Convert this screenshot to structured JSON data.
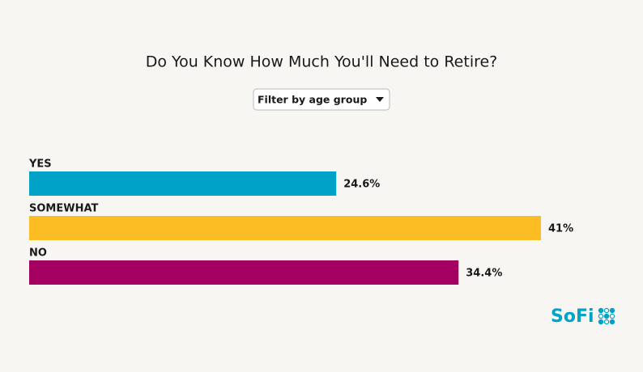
{
  "chart_data": {
    "type": "bar",
    "orientation": "horizontal",
    "title": "Do You Know How Much You'll Need to Retire?",
    "categories": [
      "YES",
      "SOMEWHAT",
      "NO"
    ],
    "values": [
      24.6,
      41,
      34.4
    ],
    "value_labels": [
      "24.6%",
      "41%",
      "34.4%"
    ],
    "colors": [
      "#00a3c7",
      "#fbbd23",
      "#a30061"
    ]
  },
  "filter": {
    "label": "Filter by age group"
  },
  "logo": {
    "text": "SoFi"
  }
}
